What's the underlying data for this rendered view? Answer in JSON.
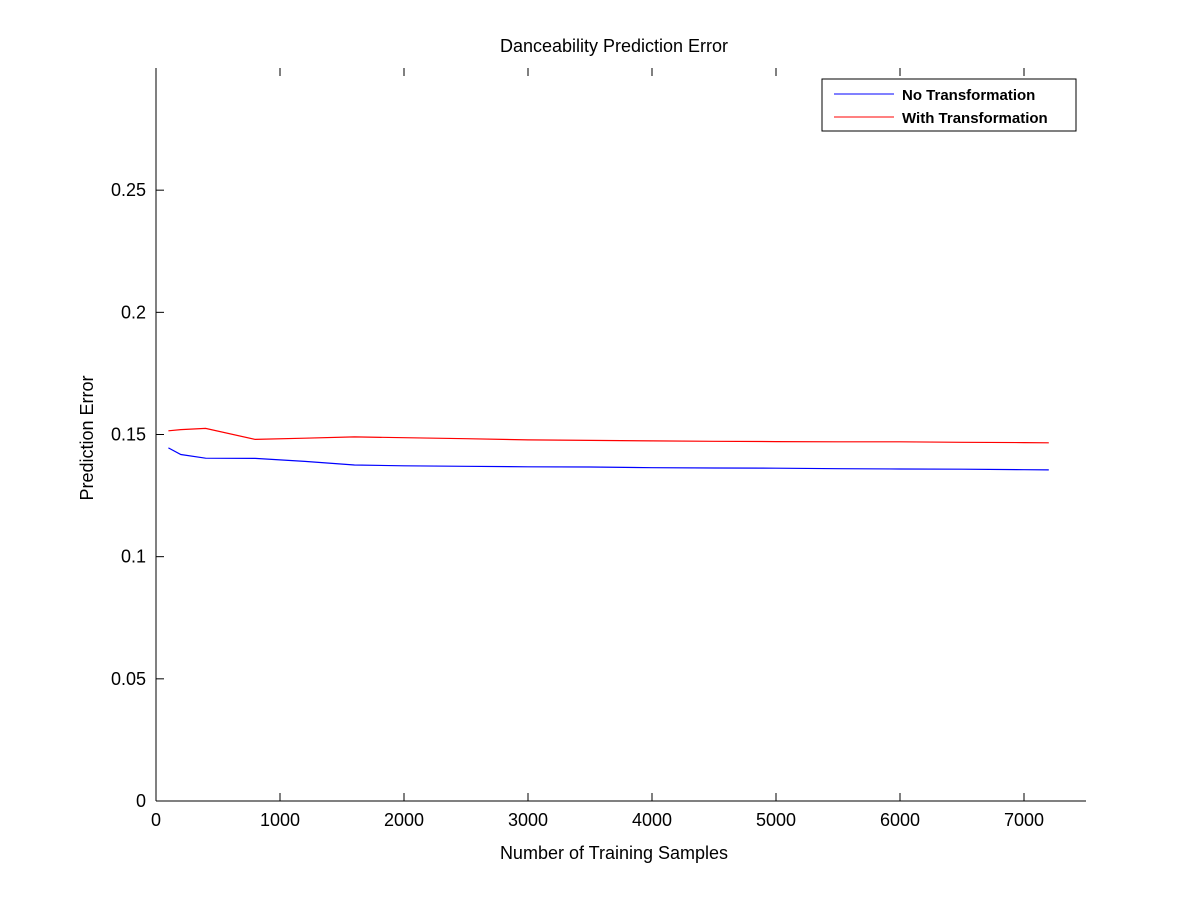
{
  "chart_data": {
    "type": "line",
    "title": "Danceability Prediction Error",
    "xlabel": "Number of Training Samples",
    "ylabel": "Prediction Error",
    "xlim": [
      0,
      7500
    ],
    "ylim": [
      0,
      0.3
    ],
    "xticks": [
      0,
      1000,
      2000,
      3000,
      4000,
      5000,
      6000,
      7000
    ],
    "xtick_labels": [
      "0",
      "1000",
      "2000",
      "3000",
      "4000",
      "5000",
      "6000",
      "7000"
    ],
    "yticks": [
      0,
      0.05,
      0.1,
      0.15,
      0.2,
      0.25
    ],
    "ytick_labels": [
      "0",
      "0.05",
      "0.1",
      "0.15",
      "0.2",
      "0.25"
    ],
    "grid": false,
    "legend": "top-right",
    "series": [
      {
        "name": "No Transformation",
        "color": "#0000ff",
        "x": [
          100,
          200,
          400,
          800,
          1200,
          1600,
          2000,
          2500,
          3000,
          3500,
          4000,
          4500,
          5000,
          5500,
          6000,
          6500,
          7000,
          7200
        ],
        "y": [
          0.1445,
          0.1418,
          0.1403,
          0.1402,
          0.139,
          0.1375,
          0.1372,
          0.137,
          0.1368,
          0.1367,
          0.1364,
          0.1363,
          0.1362,
          0.136,
          0.1359,
          0.1358,
          0.1356,
          0.1355
        ]
      },
      {
        "name": "With Transformation",
        "color": "#ff0000",
        "x": [
          100,
          200,
          400,
          800,
          1200,
          1600,
          2000,
          2500,
          3000,
          3500,
          4000,
          4500,
          5000,
          5500,
          6000,
          6500,
          7000,
          7200
        ],
        "y": [
          0.1515,
          0.152,
          0.1525,
          0.148,
          0.1485,
          0.149,
          0.1487,
          0.1483,
          0.1478,
          0.1476,
          0.1474,
          0.1472,
          0.1471,
          0.147,
          0.147,
          0.1468,
          0.1467,
          0.1466
        ]
      }
    ]
  }
}
